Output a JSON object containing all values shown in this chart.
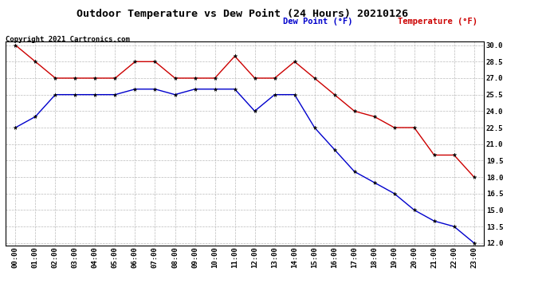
{
  "title": "Outdoor Temperature vs Dew Point (24 Hours) 20210126",
  "copyright_text": "Copyright 2021 Cartronics.com",
  "legend_dew": "Dew Point (°F)",
  "legend_temp": "Temperature (°F)",
  "hours": [
    "00:00",
    "01:00",
    "02:00",
    "03:00",
    "04:00",
    "05:00",
    "06:00",
    "07:00",
    "08:00",
    "09:00",
    "10:00",
    "11:00",
    "12:00",
    "13:00",
    "14:00",
    "15:00",
    "16:00",
    "17:00",
    "18:00",
    "19:00",
    "20:00",
    "21:00",
    "22:00",
    "23:00"
  ],
  "temperature": [
    30.0,
    28.5,
    27.0,
    27.0,
    27.0,
    27.0,
    28.5,
    28.5,
    27.0,
    27.0,
    27.0,
    29.0,
    27.0,
    27.0,
    28.5,
    27.0,
    25.5,
    24.0,
    23.5,
    22.5,
    22.5,
    20.0,
    20.0,
    18.0
  ],
  "dew_point": [
    22.5,
    23.5,
    25.5,
    25.5,
    25.5,
    25.5,
    26.0,
    26.0,
    25.5,
    26.0,
    26.0,
    26.0,
    24.0,
    25.5,
    25.5,
    22.5,
    20.5,
    18.5,
    17.5,
    16.5,
    15.0,
    14.0,
    13.5,
    12.0
  ],
  "ylim_min": 12.0,
  "ylim_max": 30.0,
  "y_ticks": [
    12.0,
    13.5,
    15.0,
    16.5,
    18.0,
    19.5,
    21.0,
    22.5,
    24.0,
    25.5,
    27.0,
    28.5,
    30.0
  ],
  "temp_color": "#cc0000",
  "dew_color": "#0000cc",
  "bg_color": "#ffffff",
  "grid_color": "#bbbbbb",
  "title_fontsize": 9.5,
  "tick_fontsize": 6.5,
  "legend_fontsize": 7.5,
  "copyright_fontsize": 6.5
}
